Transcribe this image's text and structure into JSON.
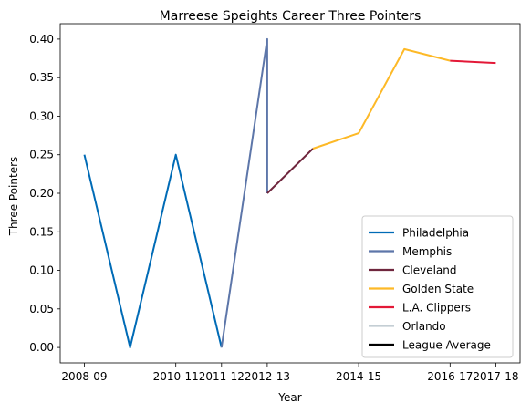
{
  "chart_data": {
    "type": "line",
    "title": "Marreese Speights Career Three Pointers",
    "xlabel": "Year",
    "ylabel": "Three Pointers",
    "x_ticks": [
      "2008-09",
      "2010-11",
      "2011-12",
      "2012-13",
      "2014-15",
      "2016-17",
      "2017-18"
    ],
    "y_ticks": [
      "0.00",
      "0.05",
      "0.10",
      "0.15",
      "0.20",
      "0.25",
      "0.30",
      "0.35",
      "0.40"
    ],
    "ylim": [
      -0.02,
      0.42
    ],
    "legend_position": "lower-right",
    "series": [
      {
        "name": "Philadelphia",
        "color": "#006bb6",
        "points": [
          [
            "2008-09",
            0.25
          ],
          [
            "2009-10",
            0.0
          ],
          [
            "2010-11",
            0.25
          ],
          [
            "2011-12",
            0.0
          ]
        ]
      },
      {
        "name": "Memphis",
        "color": "#5d76a9",
        "points": [
          [
            "2011-12",
            0.0
          ],
          [
            "2012-13",
            0.4
          ],
          [
            "2012-13",
            0.2
          ]
        ]
      },
      {
        "name": "Cleveland",
        "color": "#6f263d",
        "points": [
          [
            "2012-13",
            0.2
          ],
          [
            "2013-14",
            0.258
          ]
        ]
      },
      {
        "name": "Golden State",
        "color": "#fdb927",
        "points": [
          [
            "2013-14",
            0.258
          ],
          [
            "2014-15",
            0.278
          ],
          [
            "2015-16",
            0.387
          ],
          [
            "2016-17",
            0.372
          ]
        ]
      },
      {
        "name": "L.A. Clippers",
        "color": "#e31837",
        "points": [
          [
            "2016-17",
            0.372
          ],
          [
            "2017-18",
            0.369
          ]
        ]
      },
      {
        "name": "Orlando",
        "color": "#c4ced4",
        "points": []
      },
      {
        "name": "League Average",
        "color": "#000000",
        "points": []
      }
    ]
  }
}
